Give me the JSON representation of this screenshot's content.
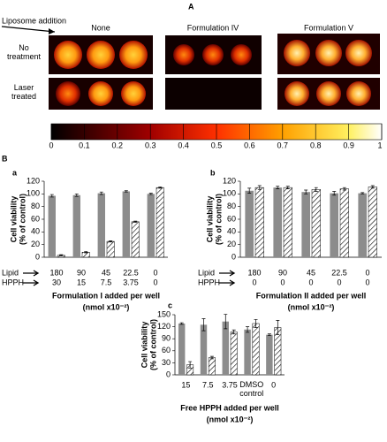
{
  "panel_a": {
    "label": "A",
    "liposome_label": "Liposome addition",
    "columns": [
      "None",
      "Formulation IV",
      "Formulation V"
    ],
    "rows": [
      "No\ntreatment",
      "Laser\ntreated"
    ],
    "colorbar_ticks": [
      0,
      0.1,
      0.2,
      0.3,
      0.4,
      0.5,
      0.6,
      0.7,
      0.8,
      0.9,
      1
    ]
  },
  "panel_b_label": "B",
  "chart_data": [
    {
      "type": "bar",
      "label": "a",
      "ylabel": [
        "Cell viability",
        "(% of control)"
      ],
      "ylim": [
        0,
        120
      ],
      "yticks": [
        0,
        20,
        40,
        60,
        80,
        100,
        120
      ],
      "row_labels": [
        "Lipid",
        "HPPH"
      ],
      "lipid": [
        180,
        90,
        45,
        22.5,
        0
      ],
      "hpph": [
        30,
        15,
        7.5,
        3.75,
        0
      ],
      "xlabel": [
        "Formulation I added per well",
        "(nmol x10⁻²)"
      ],
      "series": [
        {
          "color": "#8c8c8c",
          "values": [
            97,
            98,
            101,
            104,
            100
          ],
          "errors": [
            2,
            2,
            2,
            1,
            1
          ]
        },
        {
          "color": "#ffffff",
          "hatch": true,
          "values": [
            3,
            8,
            25,
            56,
            110
          ],
          "errors": [
            1,
            1,
            1,
            1,
            1
          ]
        }
      ]
    },
    {
      "type": "bar",
      "label": "b",
      "ylabel": [
        "Cell viability",
        "(% of control)"
      ],
      "ylim": [
        0,
        120
      ],
      "yticks": [
        0,
        20,
        40,
        60,
        80,
        100,
        120
      ],
      "row_labels": [
        "Lipid",
        "HPPH"
      ],
      "lipid": [
        180,
        90,
        45,
        22.5,
        0
      ],
      "hpph": [
        0,
        0,
        0,
        0,
        0
      ],
      "xlabel": [
        "Formulation II added per well",
        "(nmol x10⁻²)"
      ],
      "series": [
        {
          "color": "#8c8c8c",
          "values": [
            105,
            110,
            103,
            101,
            101
          ],
          "errors": [
            4,
            2,
            3,
            3,
            1
          ]
        },
        {
          "color": "#ffffff",
          "hatch": true,
          "values": [
            110,
            110,
            107,
            108,
            111
          ],
          "errors": [
            3,
            2,
            3,
            2,
            2
          ]
        }
      ]
    },
    {
      "type": "bar",
      "label": "c",
      "ylabel": [
        "Cell viability",
        "(% of control)"
      ],
      "ylim": [
        0,
        150
      ],
      "yticks": [
        0,
        30,
        60,
        90,
        120,
        150
      ],
      "categories": [
        "15",
        "7.5",
        "3.75",
        "DMSO\ncontrol",
        "0"
      ],
      "xlabel": [
        "Free HPPH added per well",
        "(nmol x10⁻²)"
      ],
      "series": [
        {
          "color": "#8c8c8c",
          "values": [
            128,
            125,
            133,
            113,
            100
          ],
          "errors": [
            2,
            15,
            18,
            7,
            2
          ]
        },
        {
          "color": "#ffffff",
          "hatch": true,
          "values": [
            25,
            43,
            107,
            128,
            118
          ],
          "errors": [
            8,
            3,
            5,
            10,
            18
          ]
        }
      ]
    }
  ]
}
